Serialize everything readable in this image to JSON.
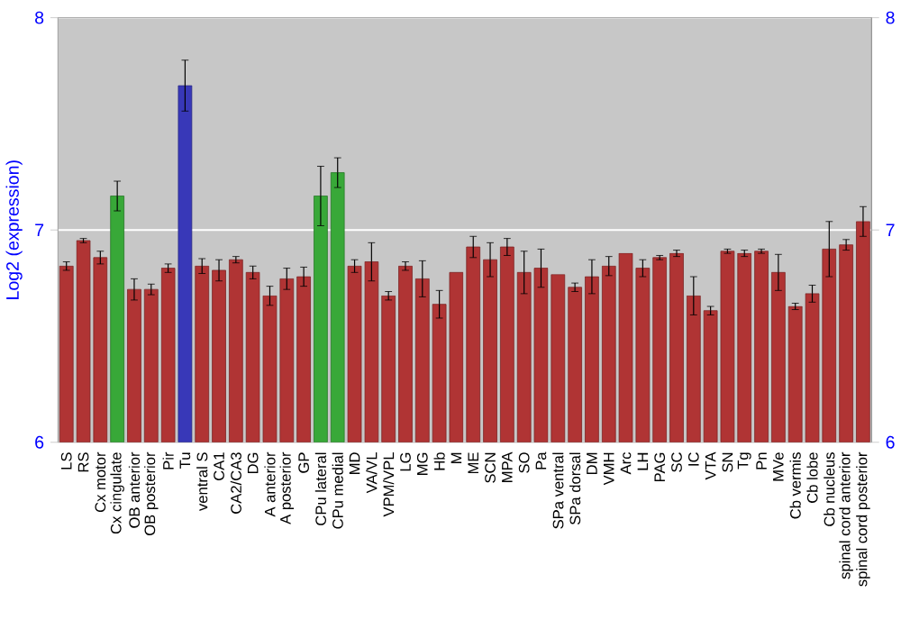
{
  "chart_data": {
    "type": "bar",
    "ylabel": "Log2 (expression)",
    "categories": [
      "LS",
      "RS",
      "Cx motor",
      "Cx cingulate",
      "OB anterior",
      "OB posterior",
      "Pir",
      "Tu",
      "ventral S",
      "CA1",
      "CA2/CA3",
      "DG",
      "A anterior",
      "A posterior",
      "GP",
      "CPu lateral",
      "CPu medial",
      "MD",
      "VA/VL",
      "VPM/VPL",
      "LG",
      "MG",
      "Hb",
      "M",
      "ME",
      "SCN",
      "MPA",
      "SO",
      "Pa",
      "SPa ventral",
      "SPa dorsal",
      "DM",
      "VMH",
      "Arc",
      "LH",
      "PAG",
      "SC",
      "IC",
      "VTA",
      "SN",
      "Tg",
      "Pn",
      "MVe",
      "Cb vermis",
      "Cb lobe",
      "Cb nucleus",
      "spinal cord anterior",
      "spinal cord posterior"
    ],
    "values": [
      6.83,
      6.95,
      6.87,
      7.16,
      6.72,
      6.72,
      6.82,
      7.68,
      6.83,
      6.81,
      6.86,
      6.8,
      6.69,
      6.77,
      6.78,
      7.16,
      7.27,
      6.83,
      6.85,
      6.69,
      6.83,
      6.77,
      6.65,
      6.8,
      6.92,
      6.86,
      6.92,
      6.8,
      6.82,
      6.79,
      6.73,
      6.78,
      6.83,
      6.89,
      6.82,
      6.87,
      6.89,
      6.69,
      6.62,
      6.9,
      6.89,
      6.9,
      6.8,
      6.64,
      6.7,
      6.91,
      6.93,
      7.04
    ],
    "errors": [
      0.02,
      0.01,
      0.03,
      0.07,
      0.05,
      0.025,
      0.02,
      0.12,
      0.035,
      0.05,
      0.015,
      0.03,
      0.045,
      0.05,
      0.045,
      0.14,
      0.07,
      0.03,
      0.09,
      0.02,
      0.02,
      0.085,
      0.065,
      null,
      0.05,
      0.08,
      0.04,
      0.1,
      0.09,
      null,
      0.02,
      0.08,
      0.045,
      null,
      0.04,
      0.01,
      0.015,
      0.09,
      0.02,
      0.01,
      0.015,
      0.01,
      0.085,
      0.015,
      0.04,
      0.13,
      0.025,
      0.07
    ],
    "colors": [
      "#b03434",
      "#b03434",
      "#b03434",
      "#38a838",
      "#b03434",
      "#b03434",
      "#b03434",
      "#3838b8",
      "#b03434",
      "#b03434",
      "#b03434",
      "#b03434",
      "#b03434",
      "#b03434",
      "#b03434",
      "#38a838",
      "#38a838",
      "#b03434",
      "#b03434",
      "#b03434",
      "#b03434",
      "#b03434",
      "#b03434",
      "#b03434",
      "#b03434",
      "#b03434",
      "#b03434",
      "#b03434",
      "#b03434",
      "#b03434",
      "#b03434",
      "#b03434",
      "#b03434",
      "#b03434",
      "#b03434",
      "#b03434",
      "#b03434",
      "#b03434",
      "#b03434",
      "#b03434",
      "#b03434",
      "#b03434",
      "#b03434",
      "#b03434",
      "#b03434",
      "#b03434",
      "#b03434",
      "#b03434"
    ],
    "ylim": [
      6,
      8
    ],
    "yticks": [
      6,
      7,
      8
    ],
    "y2lim": [
      6,
      8
    ],
    "y2ticks": [
      6,
      7,
      8
    ],
    "grid": "y"
  }
}
